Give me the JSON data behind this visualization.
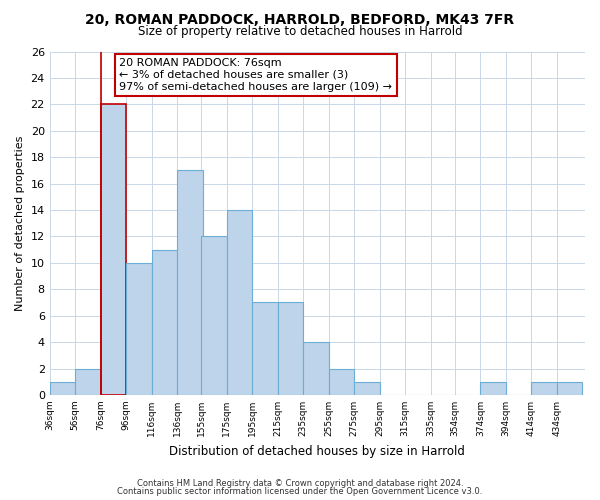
{
  "title_line1": "20, ROMAN PADDOCK, HARROLD, BEDFORD, MK43 7FR",
  "title_line2": "Size of property relative to detached houses in Harrold",
  "xlabel": "Distribution of detached houses by size in Harrold",
  "ylabel": "Number of detached properties",
  "bin_labels": [
    "36sqm",
    "56sqm",
    "76sqm",
    "96sqm",
    "116sqm",
    "136sqm",
    "155sqm",
    "175sqm",
    "195sqm",
    "215sqm",
    "235sqm",
    "255sqm",
    "275sqm",
    "295sqm",
    "315sqm",
    "335sqm",
    "354sqm",
    "374sqm",
    "394sqm",
    "414sqm",
    "434sqm"
  ],
  "bin_edges": [
    36,
    56,
    76,
    96,
    116,
    136,
    155,
    175,
    195,
    215,
    235,
    255,
    275,
    295,
    315,
    335,
    354,
    374,
    394,
    414,
    434
  ],
  "counts": [
    1,
    2,
    22,
    10,
    11,
    17,
    12,
    14,
    7,
    7,
    4,
    2,
    1,
    0,
    0,
    0,
    0,
    1,
    0,
    1,
    1
  ],
  "highlight_bin_index": 2,
  "highlight_color": "#c00000",
  "bar_color": "#bdd4ea",
  "bar_edge_color": "#6baed6",
  "highlight_bar_edge_color": "#c00000",
  "ylim": [
    0,
    26
  ],
  "yticks": [
    0,
    2,
    4,
    6,
    8,
    10,
    12,
    14,
    16,
    18,
    20,
    22,
    24,
    26
  ],
  "annotation_title": "20 ROMAN PADDOCK: 76sqm",
  "annotation_line1": "← 3% of detached houses are smaller (3)",
  "annotation_line2": "97% of semi-detached houses are larger (109) →",
  "annotation_box_color": "#ffffff",
  "annotation_box_edge": "#c00000",
  "footnote1": "Contains HM Land Registry data © Crown copyright and database right 2024.",
  "footnote2": "Contains public sector information licensed under the Open Government Licence v3.0.",
  "background_color": "#ffffff",
  "grid_color": "#c8d8e8"
}
